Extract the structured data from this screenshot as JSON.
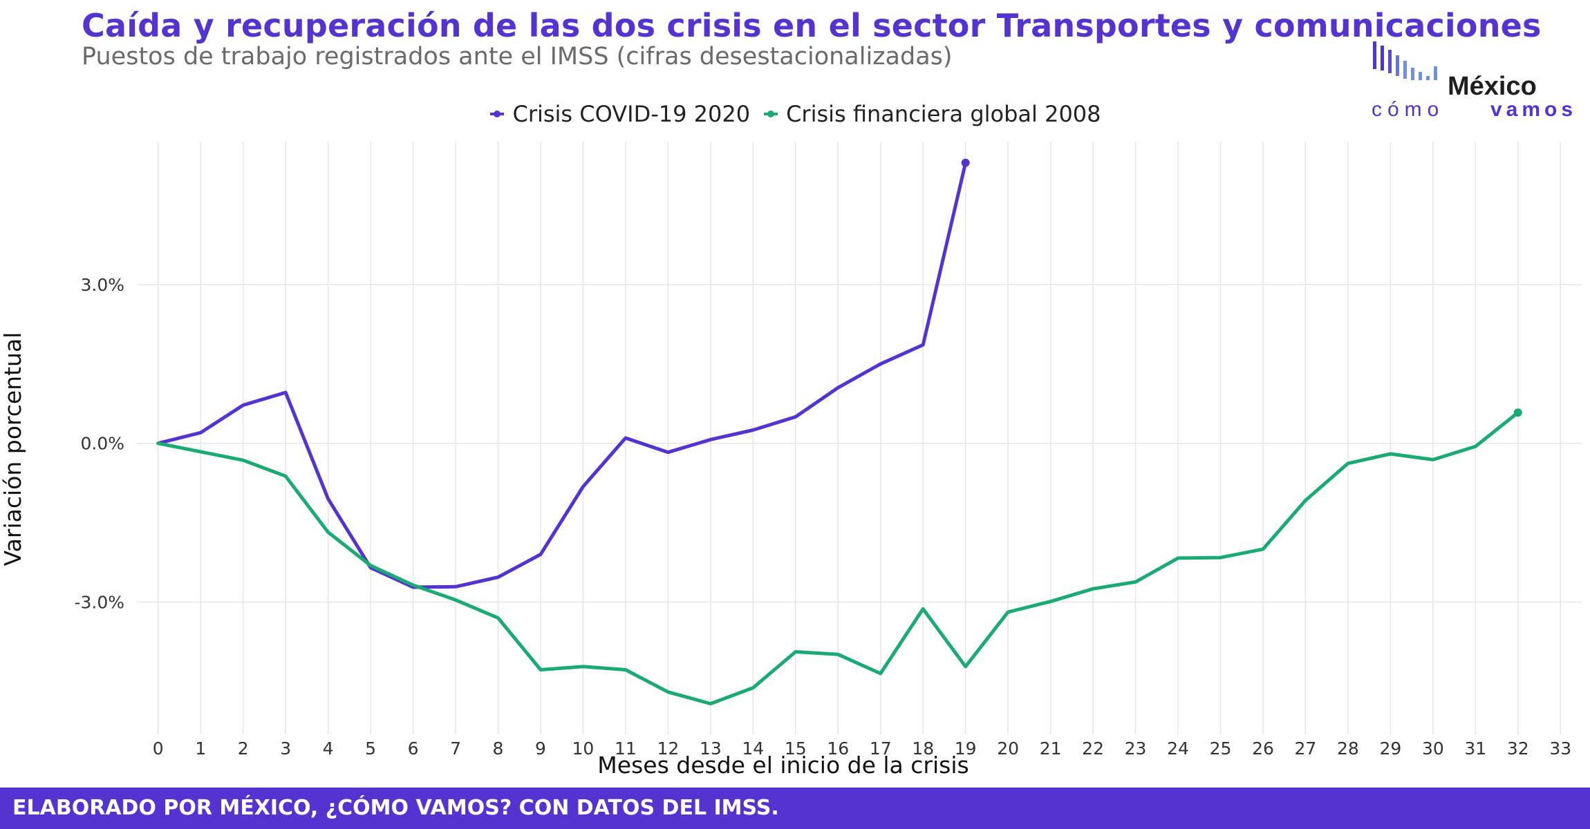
{
  "header": {
    "title": "Caída y recuperación de las dos crisis en el sector Transportes y comunicaciones",
    "subtitle": "Puestos de trabajo registrados ante el IMSS (cifras desestacionalizadas)"
  },
  "logo": {
    "word1": "México",
    "word2": "cómo",
    "word3": "vamos"
  },
  "footer": {
    "text": "ELABORADO POR MÉXICO, ¿CÓMO VAMOS? CON DATOS DEL IMSS."
  },
  "colors": {
    "accent": "#5533d1",
    "covid": "#5533d1",
    "financial": "#1aaa73"
  },
  "chart_data": {
    "type": "line",
    "xlabel": "Meses desde el inicio de la crisis",
    "ylabel": "Variación porcentual",
    "xlim": [
      -0.5,
      33.5
    ],
    "ylim": [
      -5.5,
      5.7
    ],
    "x_ticks": [
      0,
      1,
      2,
      3,
      4,
      5,
      6,
      7,
      8,
      9,
      10,
      11,
      12,
      13,
      14,
      15,
      16,
      17,
      18,
      19,
      20,
      21,
      22,
      23,
      24,
      25,
      26,
      27,
      28,
      29,
      30,
      31,
      32,
      33
    ],
    "y_ticks": [
      3.0,
      0.0,
      -3.0
    ],
    "y_tick_labels": [
      "3.0%",
      "0.0%",
      "-3.0%"
    ],
    "grid": true,
    "legend_position": "top-center",
    "series": [
      {
        "name": "Crisis COVID-19 2020",
        "color": "#5533d1",
        "x": [
          0,
          1,
          2,
          3,
          4,
          5,
          6,
          7,
          8,
          9,
          10,
          11,
          12,
          13,
          14,
          15,
          16,
          17,
          18,
          19
        ],
        "values": [
          0.0,
          0.2,
          0.72,
          0.96,
          -1.05,
          -2.35,
          -2.72,
          -2.71,
          -2.53,
          -2.1,
          -0.82,
          0.1,
          -0.17,
          0.07,
          0.25,
          0.5,
          1.05,
          1.5,
          1.86,
          5.3
        ]
      },
      {
        "name": "Crisis financiera global 2008",
        "color": "#1aaa73",
        "x": [
          0,
          1,
          2,
          3,
          4,
          5,
          6,
          7,
          8,
          9,
          10,
          11,
          12,
          13,
          14,
          15,
          16,
          17,
          18,
          19,
          20,
          21,
          22,
          23,
          24,
          25,
          26,
          27,
          28,
          29,
          30,
          31,
          32
        ],
        "values": [
          0.0,
          -0.16,
          -0.32,
          -0.62,
          -1.68,
          -2.31,
          -2.68,
          -2.96,
          -3.3,
          -4.28,
          -4.22,
          -4.28,
          -4.7,
          -4.92,
          -4.62,
          -3.94,
          -3.99,
          -4.35,
          -3.13,
          -4.22,
          -3.19,
          -2.99,
          -2.75,
          -2.62,
          -2.17,
          -2.16,
          -2.0,
          -1.08,
          -0.38,
          -0.2,
          -0.31,
          -0.06,
          0.58
        ]
      }
    ]
  }
}
